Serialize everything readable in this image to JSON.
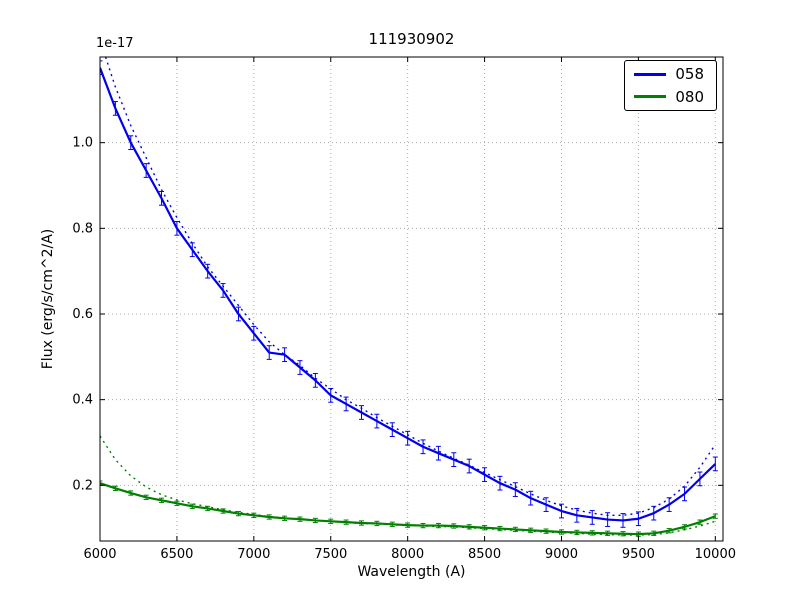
{
  "legend": {
    "entries": [
      {
        "label": "058",
        "color": "#0000ee"
      },
      {
        "label": "080",
        "color": "#008000"
      }
    ]
  },
  "chart_data": {
    "type": "line",
    "title": "111930902",
    "xlabel": "Wavelength (A)",
    "ylabel": "Flux (erg/s/cm^2/A)",
    "y_scale_factor": "1e-17",
    "xlim": [
      6000,
      10050
    ],
    "ylim": [
      0.07,
      1.2
    ],
    "xticks": [
      6000,
      6500,
      7000,
      7500,
      8000,
      8500,
      9000,
      9500,
      10000
    ],
    "yticks": [
      0.2,
      0.4,
      0.6,
      0.8,
      1.0
    ],
    "grid": true,
    "legend_position": "upper right",
    "x": [
      6000,
      6100,
      6200,
      6300,
      6400,
      6500,
      6600,
      6700,
      6800,
      6900,
      7000,
      7100,
      7200,
      7300,
      7400,
      7500,
      7600,
      7700,
      7800,
      7900,
      8000,
      8100,
      8200,
      8300,
      8400,
      8500,
      8600,
      8700,
      8800,
      8900,
      9000,
      9100,
      9200,
      9300,
      9400,
      9500,
      9600,
      9700,
      9800,
      9900,
      10000
    ],
    "series": [
      {
        "name": "058 model",
        "style": "dotted",
        "color": "#0000ee",
        "error": 0,
        "values": [
          1.24,
          1.13,
          1.04,
          0.965,
          0.89,
          0.825,
          0.765,
          0.71,
          0.665,
          0.62,
          0.575,
          0.535,
          0.505,
          0.48,
          0.45,
          0.425,
          0.4,
          0.38,
          0.358,
          0.338,
          0.318,
          0.298,
          0.28,
          0.263,
          0.247,
          0.23,
          0.213,
          0.197,
          0.18,
          0.165,
          0.152,
          0.142,
          0.135,
          0.13,
          0.13,
          0.135,
          0.148,
          0.168,
          0.198,
          0.242,
          0.295
        ]
      },
      {
        "name": "080 model",
        "style": "dotted",
        "color": "#008000",
        "error": 0,
        "values": [
          0.315,
          0.26,
          0.222,
          0.196,
          0.178,
          0.166,
          0.157,
          0.15,
          0.143,
          0.137,
          0.132,
          0.127,
          0.124,
          0.121,
          0.118,
          0.116,
          0.113,
          0.111,
          0.11,
          0.108,
          0.106,
          0.105,
          0.104,
          0.103,
          0.101,
          0.099,
          0.097,
          0.095,
          0.093,
          0.091,
          0.089,
          0.088,
          0.086,
          0.085,
          0.084,
          0.084,
          0.085,
          0.089,
          0.096,
          0.105,
          0.116
        ]
      },
      {
        "name": "058",
        "style": "solid",
        "color": "#0000ee",
        "error": 0.016,
        "values": [
          1.175,
          1.08,
          1.0,
          0.935,
          0.87,
          0.8,
          0.75,
          0.7,
          0.655,
          0.6,
          0.555,
          0.51,
          0.505,
          0.475,
          0.445,
          0.41,
          0.39,
          0.37,
          0.35,
          0.33,
          0.31,
          0.29,
          0.275,
          0.26,
          0.245,
          0.225,
          0.205,
          0.19,
          0.17,
          0.155,
          0.14,
          0.13,
          0.125,
          0.12,
          0.118,
          0.122,
          0.135,
          0.155,
          0.18,
          0.215,
          0.25
        ]
      },
      {
        "name": "080",
        "style": "solid",
        "color": "#008000",
        "error": 0.005,
        "values": [
          0.205,
          0.193,
          0.182,
          0.172,
          0.165,
          0.158,
          0.151,
          0.146,
          0.14,
          0.134,
          0.13,
          0.126,
          0.123,
          0.121,
          0.118,
          0.116,
          0.114,
          0.112,
          0.111,
          0.109,
          0.107,
          0.106,
          0.106,
          0.105,
          0.103,
          0.101,
          0.099,
          0.097,
          0.095,
          0.093,
          0.091,
          0.09,
          0.089,
          0.088,
          0.087,
          0.086,
          0.088,
          0.094,
          0.103,
          0.114,
          0.128
        ]
      }
    ]
  }
}
